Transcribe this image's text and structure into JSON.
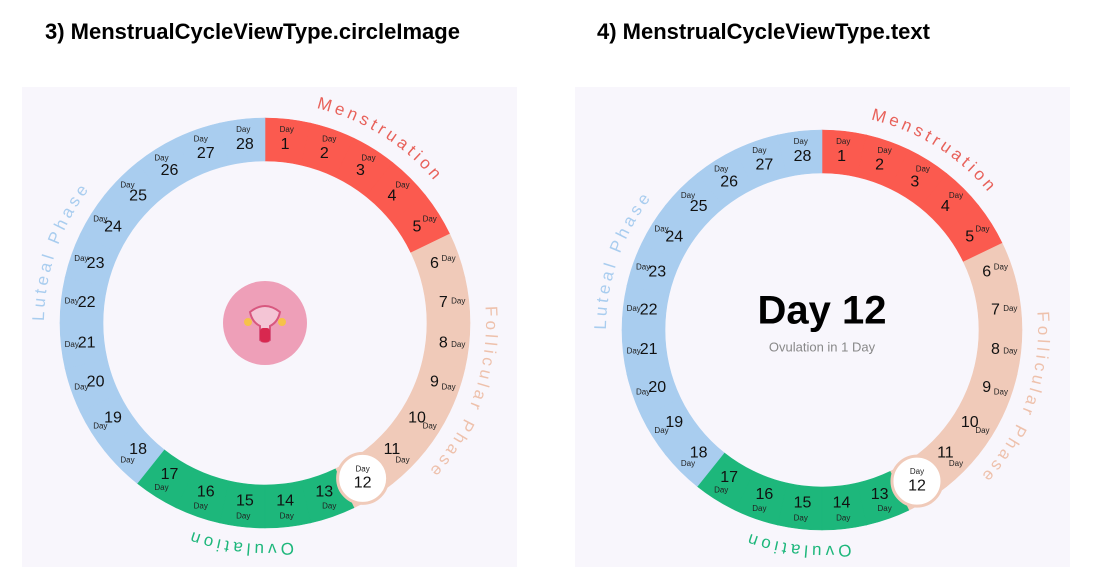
{
  "panels": [
    {
      "title": "3) MenstrualCycleViewType.circleImage",
      "day_label": "Day",
      "selected_day": 12,
      "phases": [
        {
          "name": "Menstruation",
          "color": "#fb5a4f",
          "text_color": "#e8615a",
          "days": [
            1,
            2,
            3,
            4,
            5
          ]
        },
        {
          "name": "Follicular Phase",
          "color": "#f0cab9",
          "text_color": "#eec1ac",
          "days": [
            6,
            7,
            8,
            9,
            10,
            11,
            12
          ]
        },
        {
          "name": "Ovulation",
          "color": "#1db77b",
          "text_color": "#1db77b",
          "days": [
            13,
            14,
            15,
            16,
            17
          ]
        },
        {
          "name": "Luteal Phase",
          "color": "#a9cdef",
          "text_color": "#a9cdef",
          "days": [
            18,
            19,
            20,
            21,
            22,
            23,
            24,
            25,
            26,
            27,
            28
          ]
        }
      ]
    },
    {
      "title": "4) MenstrualCycleViewType.text",
      "day_label": "Day",
      "selected_day": 12,
      "center_title": "Day 12",
      "center_subtitle": "Ovulation in 1 Day",
      "phases": [
        {
          "name": "Menstruation",
          "color": "#fb5a4f",
          "text_color": "#e8615a",
          "days": [
            1,
            2,
            3,
            4,
            5
          ]
        },
        {
          "name": "Follicular Phase",
          "color": "#f0cab9",
          "text_color": "#eec1ac",
          "days": [
            6,
            7,
            8,
            9,
            10,
            11,
            12
          ]
        },
        {
          "name": "Ovulation",
          "color": "#1db77b",
          "text_color": "#1db77b",
          "days": [
            13,
            14,
            15,
            16,
            17
          ]
        },
        {
          "name": "Luteal Phase",
          "color": "#a9cdef",
          "text_color": "#a9cdef",
          "days": [
            18,
            19,
            20,
            21,
            22,
            23,
            24,
            25,
            26,
            27,
            28
          ]
        }
      ]
    }
  ]
}
